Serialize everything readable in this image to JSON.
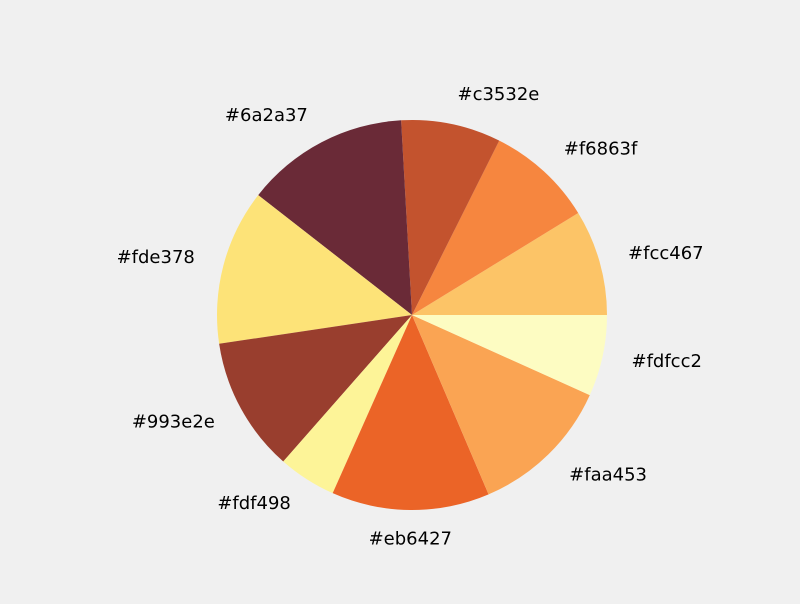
{
  "chart_data": {
    "type": "pie",
    "start_angle_deg": 0,
    "direction": "counterclockwise",
    "labels": [
      "#fcc467",
      "#f6863f",
      "#c3532e",
      "#6a2a37",
      "#fde378",
      "#993e2e",
      "#fdf498",
      "#eb6427",
      "#faa453",
      "#fdfcc2"
    ],
    "colors": [
      "#fcc467",
      "#f6863f",
      "#c3532e",
      "#6a2a37",
      "#fde378",
      "#993e2e",
      "#fdf498",
      "#eb6427",
      "#faa453",
      "#fdfcc2"
    ],
    "values": [
      9.1,
      9.2,
      8.6,
      14.1,
      13.4,
      11.6,
      5.0,
      13.6,
      12.3,
      7.0
    ]
  }
}
